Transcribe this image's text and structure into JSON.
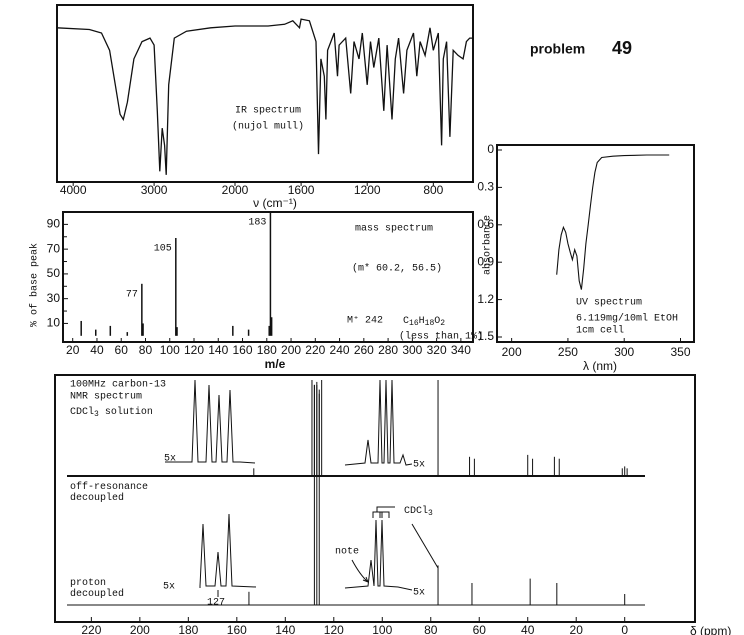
{
  "header": {
    "label": "problem",
    "number": 49
  },
  "chart_data": [
    {
      "type": "line",
      "title": "IR spectrum",
      "subtitle": "(nujol mull)",
      "xlabel": "ν (cm⁻¹)",
      "xlim": [
        4200,
        560
      ],
      "x_scale_break": 2000,
      "ylim": [
        0,
        100
      ],
      "xticks": [
        4000,
        3000,
        2000,
        1600,
        1200,
        800
      ],
      "color": "#111",
      "x": [
        4200,
        3800,
        3650,
        3550,
        3480,
        3420,
        3380,
        3330,
        3250,
        3150,
        3050,
        3000,
        2960,
        2930,
        2900,
        2870,
        2850,
        2820,
        2750,
        2600,
        2300,
        2000,
        1800,
        1700,
        1650,
        1610,
        1600,
        1550,
        1510,
        1495,
        1480,
        1460,
        1450,
        1440,
        1400,
        1380,
        1370,
        1330,
        1300,
        1280,
        1250,
        1230,
        1200,
        1180,
        1160,
        1130,
        1100,
        1080,
        1050,
        1030,
        1010,
        980,
        960,
        920,
        900,
        880,
        850,
        820,
        800,
        770,
        750,
        740,
        720,
        700,
        680,
        650,
        620,
        600,
        580,
        560
      ],
      "values": [
        88,
        87,
        85,
        75,
        55,
        38,
        35,
        45,
        70,
        80,
        82,
        78,
        40,
        5,
        30,
        20,
        3,
        55,
        82,
        86,
        88,
        89,
        89,
        90,
        92,
        88,
        93,
        92,
        80,
        15,
        70,
        60,
        35,
        75,
        85,
        60,
        78,
        82,
        50,
        80,
        70,
        85,
        55,
        80,
        65,
        82,
        40,
        78,
        35,
        70,
        82,
        50,
        75,
        85,
        60,
        80,
        72,
        88,
        75,
        85,
        20,
        70,
        80,
        25,
        75,
        72,
        70,
        80,
        82,
        82
      ]
    },
    {
      "type": "bar",
      "title": "mass spectrum",
      "annotations": [
        "(m* 60.2, 56.5)",
        "M⁺ 242",
        "C16H18O2",
        "(less than 1%)"
      ],
      "xlabel": "m/e",
      "ylabel": "% of base peak",
      "xlim": [
        12,
        350
      ],
      "ylim": [
        -5,
        100
      ],
      "xticks": [
        20,
        40,
        60,
        80,
        100,
        120,
        140,
        160,
        180,
        200,
        220,
        240,
        260,
        280,
        300,
        320,
        340
      ],
      "yticks": [
        10,
        30,
        50,
        70,
        90
      ],
      "yminor": [
        20,
        40,
        60,
        80
      ],
      "color": "#111",
      "x": [
        27,
        39,
        51,
        65,
        77,
        78,
        105,
        106,
        152,
        165,
        182,
        183,
        184
      ],
      "values": [
        12,
        5,
        8,
        3,
        42,
        10,
        79,
        7,
        8,
        5,
        8,
        100,
        15
      ],
      "labeled_x": [
        77,
        105,
        183
      ]
    },
    {
      "type": "line",
      "title": "UV spectrum",
      "annotations": [
        "6.119mg/10ml EtOH",
        "1cm cell"
      ],
      "xlabel": "λ (nm)",
      "ylabel": "absorbance",
      "xlim": [
        187,
        362
      ],
      "ylim": [
        -0.04,
        1.54
      ],
      "y_inverted": true,
      "xticks": [
        200,
        250,
        300,
        350
      ],
      "yticks": [
        0,
        0.3,
        0.6,
        0.9,
        1.2,
        1.5
      ],
      "color": "#111",
      "x": [
        240,
        242,
        244,
        246,
        248,
        250,
        252,
        254,
        256,
        258,
        260,
        262,
        264,
        266,
        268,
        270,
        272,
        274,
        276,
        280,
        290,
        300,
        320,
        340
      ],
      "values": [
        1.0,
        0.8,
        0.68,
        0.62,
        0.66,
        0.75,
        0.82,
        0.88,
        0.8,
        0.85,
        1.05,
        1.12,
        0.95,
        0.75,
        0.6,
        0.45,
        0.3,
        0.18,
        0.1,
        0.06,
        0.05,
        0.045,
        0.04,
        0.04
      ]
    },
    {
      "type": "stem",
      "title": "100MHz carbon-13",
      "subtitle": "NMR spectrum",
      "annotations": [
        "CDCl3 solution",
        "5x",
        "5x",
        "5x",
        "5x",
        "127",
        "note",
        "CDCl3"
      ],
      "xlabel": "δ (ppm)",
      "xlim": [
        235,
        -29
      ],
      "xticks": [
        220,
        200,
        180,
        160,
        140,
        120,
        100,
        80,
        60,
        40,
        20,
        0
      ],
      "series": [
        {
          "name": "off-resonance decoupled",
          "color": "#111",
          "x": [
            153,
            129,
            128,
            127,
            126,
            125,
            77,
            64,
            62,
            40,
            38,
            29,
            27,
            1,
            0,
            -1
          ],
          "values": [
            8,
            100,
            95,
            98,
            90,
            100,
            100,
            20,
            18,
            22,
            18,
            20,
            18,
            8,
            10,
            8
          ]
        },
        {
          "name": "proton decoupled",
          "color": "#111",
          "x": [
            155,
            128,
            127,
            126,
            77,
            63,
            39,
            28,
            0
          ],
          "values": [
            6,
            100,
            100,
            96,
            18,
            10,
            12,
            10,
            5
          ]
        }
      ]
    }
  ]
}
